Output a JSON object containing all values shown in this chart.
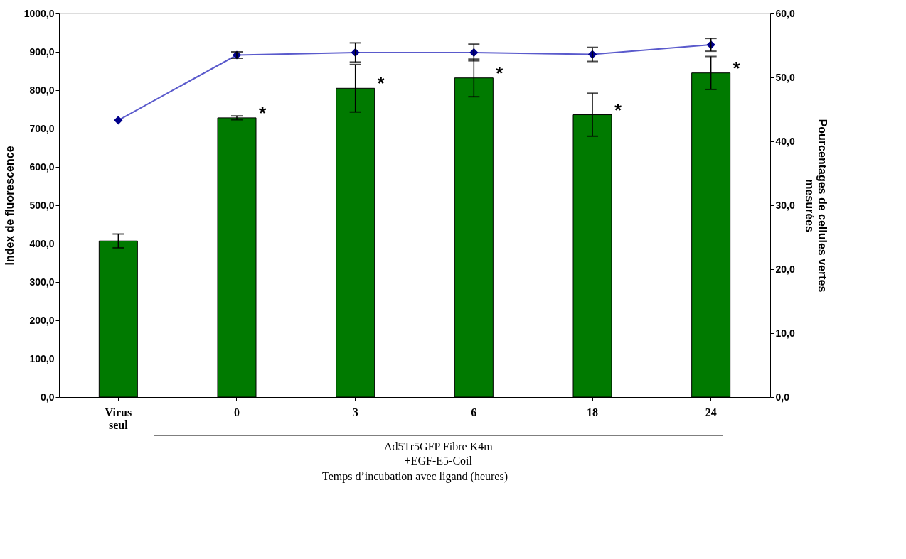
{
  "chart_data": {
    "type": "bar",
    "categories": [
      "Virus seul",
      "0",
      "3",
      "6",
      "18",
      "24"
    ],
    "series": [
      {
        "color": "#007a00",
        "values": [
          407,
          728,
          805,
          832,
          736,
          845
        ],
        "errors": [
          18,
          5,
          62,
          49,
          56,
          43
        ]
      },
      {
        "type": "line",
        "axis": "y2",
        "color": "#00008b",
        "values": [
          43.3,
          53.5,
          53.9,
          53.9,
          53.6,
          55.1
        ],
        "errors": [
          null,
          0.5,
          1.5,
          1.3,
          1.1,
          1.0
        ]
      }
    ],
    "xlabel": "Temps d’incubation avec ligand (heures)",
    "ylabel": "Index de fluorescence",
    "y2label": "Pourcentages de cellules vertes mesurées",
    "ylim": [
      0,
      1000
    ],
    "yticks": [
      {
        "value": 0,
        "label": "0,0"
      },
      {
        "value": 100,
        "label": "100,0"
      },
      {
        "value": 200,
        "label": "200,0"
      },
      {
        "value": 300,
        "label": "300,0"
      },
      {
        "value": 400,
        "label": "400,0"
      },
      {
        "value": 500,
        "label": "500,0"
      },
      {
        "value": 600,
        "label": "600,0"
      },
      {
        "value": 700,
        "label": "700,0"
      },
      {
        "value": 800,
        "label": "800,0"
      },
      {
        "value": 900,
        "label": "900,0"
      },
      {
        "value": 1000,
        "label": "1000,0"
      }
    ],
    "y2lim": [
      0,
      60
    ],
    "y2ticks": [
      {
        "value": 0,
        "label": "0,0"
      },
      {
        "value": 10,
        "label": "10,0"
      },
      {
        "value": 20,
        "label": "20,0"
      },
      {
        "value": 30,
        "label": "30,0"
      },
      {
        "value": 40,
        "label": "40,0"
      },
      {
        "value": 50,
        "label": "50,0"
      },
      {
        "value": 60,
        "label": "60,0"
      }
    ],
    "marker": "diamond",
    "line_style": "solid",
    "grid": false,
    "annotations": [
      {
        "text": "*",
        "x": "0",
        "y": 728
      },
      {
        "text": "*",
        "x": "3",
        "y": 805
      },
      {
        "text": "*",
        "x": "6",
        "y": 832
      },
      {
        "text": "*",
        "x": "18",
        "y": 736
      },
      {
        "text": "*",
        "x": "24",
        "y": 845
      },
      "Ad5Tr5GFP Fibre K4m\n+EGF-E5-Coil"
    ]
  }
}
